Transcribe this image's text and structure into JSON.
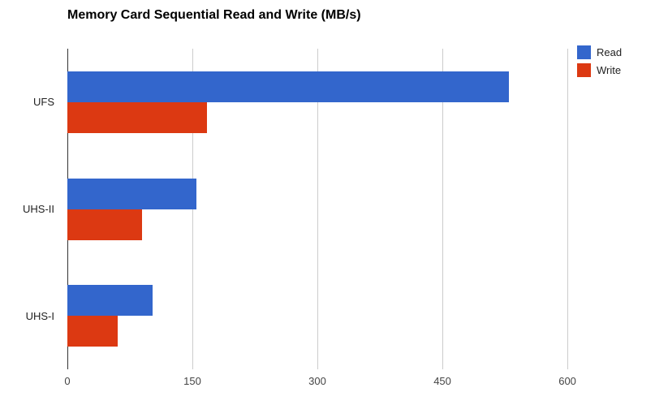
{
  "title": "Memory Card Sequential Read and Write (MB/s)",
  "legend": {
    "items": [
      {
        "label": "Read",
        "color": "#3366cc"
      },
      {
        "label": "Write",
        "color": "#dc3912"
      }
    ]
  },
  "chart_data": {
    "type": "bar",
    "orientation": "horizontal",
    "title": "Memory Card Sequential Read and Write (MB/s)",
    "categories": [
      "UFS",
      "UHS-II",
      "UHS-I"
    ],
    "series": [
      {
        "name": "Read",
        "color": "#3366cc",
        "values": [
          530,
          155,
          102
        ]
      },
      {
        "name": "Write",
        "color": "#dc3912",
        "values": [
          168,
          90,
          60
        ]
      }
    ],
    "xlabel": "",
    "ylabel": "",
    "xlim": [
      0,
      635
    ],
    "xticks": [
      0,
      150,
      300,
      450,
      600
    ],
    "grid": true,
    "legend_position": "top-right"
  }
}
